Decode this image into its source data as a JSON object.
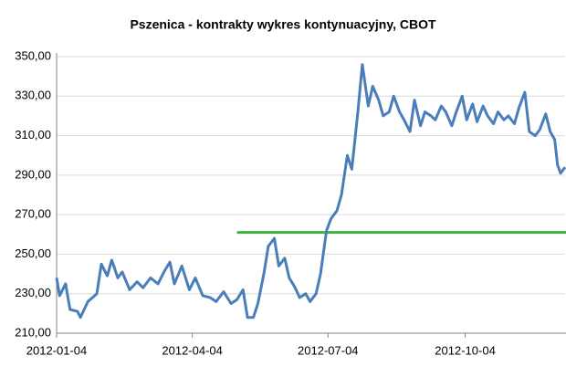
{
  "chart_data": {
    "type": "line",
    "title": "Pszenica - kontrakty wykres kontynuacyjny, CBOT",
    "x": [
      "2012-01-04",
      "2012-01-06",
      "2012-01-10",
      "2012-01-13",
      "2012-01-18",
      "2012-01-20",
      "2012-01-25",
      "2012-01-31",
      "2012-02-03",
      "2012-02-07",
      "2012-02-10",
      "2012-02-14",
      "2012-02-17",
      "2012-02-22",
      "2012-02-27",
      "2012-03-02",
      "2012-03-07",
      "2012-03-12",
      "2012-03-16",
      "2012-03-20",
      "2012-03-23",
      "2012-03-28",
      "2012-04-02",
      "2012-04-06",
      "2012-04-11",
      "2012-04-16",
      "2012-04-20",
      "2012-04-25",
      "2012-04-30",
      "2012-05-04",
      "2012-05-08",
      "2012-05-11",
      "2012-05-15",
      "2012-05-18",
      "2012-05-22",
      "2012-05-25",
      "2012-05-29",
      "2012-06-01",
      "2012-06-05",
      "2012-06-08",
      "2012-06-12",
      "2012-06-15",
      "2012-06-19",
      "2012-06-22",
      "2012-06-26",
      "2012-06-29",
      "2012-07-03",
      "2012-07-06",
      "2012-07-10",
      "2012-07-13",
      "2012-07-17",
      "2012-07-20",
      "2012-07-24",
      "2012-07-27",
      "2012-07-31",
      "2012-08-03",
      "2012-08-07",
      "2012-08-10",
      "2012-08-14",
      "2012-08-17",
      "2012-08-21",
      "2012-08-24",
      "2012-08-28",
      "2012-08-31",
      "2012-09-04",
      "2012-09-07",
      "2012-09-11",
      "2012-09-14",
      "2012-09-18",
      "2012-09-21",
      "2012-09-25",
      "2012-09-28",
      "2012-10-02",
      "2012-10-05",
      "2012-10-09",
      "2012-10-12",
      "2012-10-16",
      "2012-10-19",
      "2012-10-23",
      "2012-10-26",
      "2012-10-30",
      "2012-11-02",
      "2012-11-06",
      "2012-11-09",
      "2012-11-13",
      "2012-11-16",
      "2012-11-20",
      "2012-11-23",
      "2012-11-27",
      "2012-11-30",
      "2012-12-03",
      "2012-12-05",
      "2012-12-07",
      "2012-12-10"
    ],
    "values": [
      238,
      229,
      235,
      222,
      221,
      218,
      226,
      230,
      245,
      239,
      247,
      238,
      241,
      232,
      236,
      233,
      238,
      235,
      241,
      246,
      235,
      244,
      232,
      238,
      229,
      228,
      226,
      231,
      225,
      227,
      232,
      218,
      218,
      225,
      240,
      254,
      258,
      244,
      248,
      238,
      233,
      228,
      230,
      226,
      230,
      240,
      262,
      268,
      272,
      280,
      300,
      293,
      322,
      346,
      325,
      335,
      328,
      320,
      322,
      330,
      322,
      318,
      312,
      328,
      315,
      322,
      320,
      318,
      325,
      322,
      315,
      322,
      330,
      318,
      326,
      317,
      325,
      320,
      316,
      322,
      318,
      320,
      316,
      324,
      332,
      312,
      310,
      313,
      321,
      312,
      308,
      295,
      291,
      294
    ],
    "color": "#4a7ebb",
    "hline": {
      "value": 261,
      "from": "2012-05-04",
      "color": "#3cb043"
    },
    "xlim": [
      "2012-01-04",
      "2012-12-10"
    ],
    "xticks": [
      "2012-01-04",
      "2012-04-04",
      "2012-07-04",
      "2012-10-04"
    ],
    "ylim": [
      210,
      350
    ],
    "yticks": [
      {
        "value": 210,
        "label": "210,00"
      },
      {
        "value": 230,
        "label": "230,00"
      },
      {
        "value": 250,
        "label": "250,00"
      },
      {
        "value": 270,
        "label": "270,00"
      },
      {
        "value": 290,
        "label": "290,00"
      },
      {
        "value": 310,
        "label": "310,00"
      },
      {
        "value": 330,
        "label": "330,00"
      },
      {
        "value": 350,
        "label": "350,00"
      }
    ],
    "grid": true
  }
}
